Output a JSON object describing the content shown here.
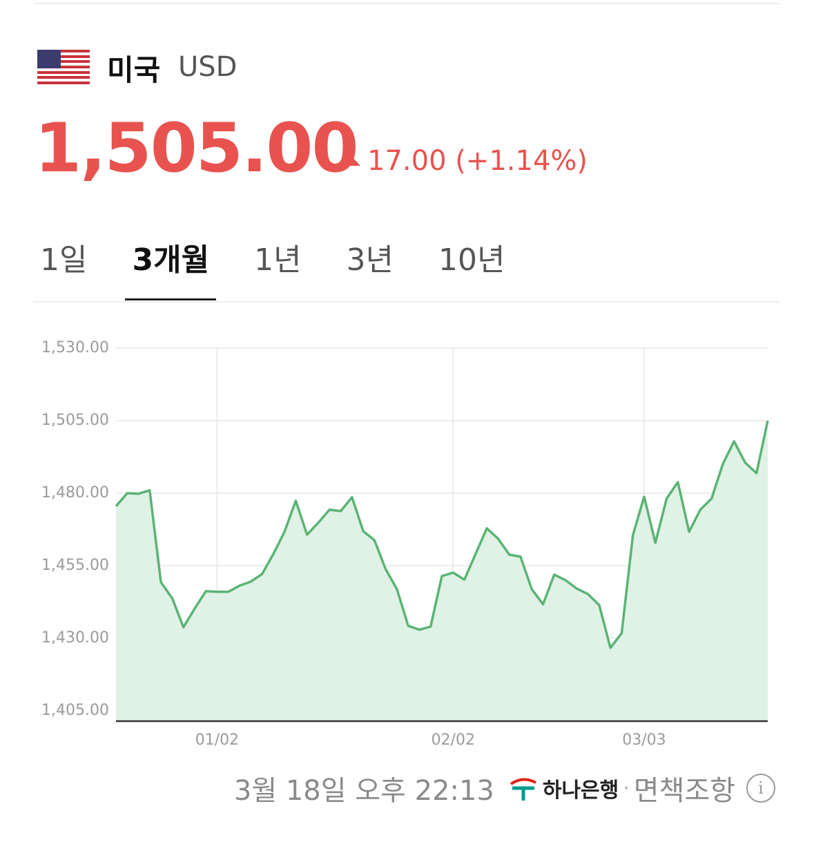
{
  "header": {
    "country": "미국",
    "currency": "USD",
    "price": "1,505.00",
    "change": "17.00",
    "change_percent": "(+1.14%)"
  },
  "tabs": [
    "1일",
    "3개월",
    "1년",
    "3년",
    "10년"
  ],
  "active_tab": 1,
  "chart_data": {
    "type": "area",
    "categories": [
      null,
      null,
      null,
      null,
      null,
      null,
      null,
      null,
      null,
      "01/02",
      null,
      null,
      null,
      null,
      null,
      null,
      null,
      null,
      null,
      null,
      null,
      null,
      null,
      null,
      null,
      null,
      null,
      null,
      null,
      null,
      "02/02",
      null,
      null,
      null,
      null,
      null,
      null,
      null,
      null,
      null,
      null,
      null,
      null,
      null,
      null,
      null,
      null,
      "03/03",
      null,
      null,
      null,
      null,
      null,
      null,
      null,
      null,
      null,
      null,
      null
    ],
    "values": [
      1475.5,
      1480.0,
      1479.8,
      1481.0,
      1449.3,
      1443.8,
      1433.8,
      1440.2,
      1446.2,
      1446.0,
      1446.0,
      1448.1,
      1449.5,
      1452.1,
      1459.0,
      1466.7,
      1477.4,
      1465.7,
      1469.8,
      1474.3,
      1473.8,
      1478.6,
      1466.9,
      1463.8,
      1453.8,
      1446.9,
      1434.3,
      1432.9,
      1434.0,
      1451.4,
      1452.6,
      1450.2,
      1459.0,
      1467.9,
      1464.3,
      1458.8,
      1458.1,
      1446.9,
      1441.7,
      1451.9,
      1450.0,
      1447.1,
      1445.2,
      1441.4,
      1426.7,
      1431.7,
      1465.5,
      1478.8,
      1462.9,
      1478.1,
      1483.8,
      1466.7,
      1474.3,
      1478.1,
      1490.0,
      1497.9,
      1490.5,
      1486.9,
      1505.0
    ],
    "color": "#5bb374",
    "fill_color": "#dff2e5",
    "ylim": [
      1401.4,
      1530
    ],
    "yticks": [
      {
        "value": 1405,
        "label": "1,405.00"
      },
      {
        "value": 1430,
        "label": "1,430.00"
      },
      {
        "value": 1455,
        "label": "1,455.00"
      },
      {
        "value": 1480,
        "label": "1,480.00"
      },
      {
        "value": 1505,
        "label": "1,505.00"
      },
      {
        "value": 1530,
        "label": "1,530.00"
      }
    ],
    "grid": true
  },
  "footer": {
    "timestamp": "3월 18일 오후 22:13",
    "provider": "하나은행",
    "separator": "·",
    "disclaimer": "면책조항"
  }
}
